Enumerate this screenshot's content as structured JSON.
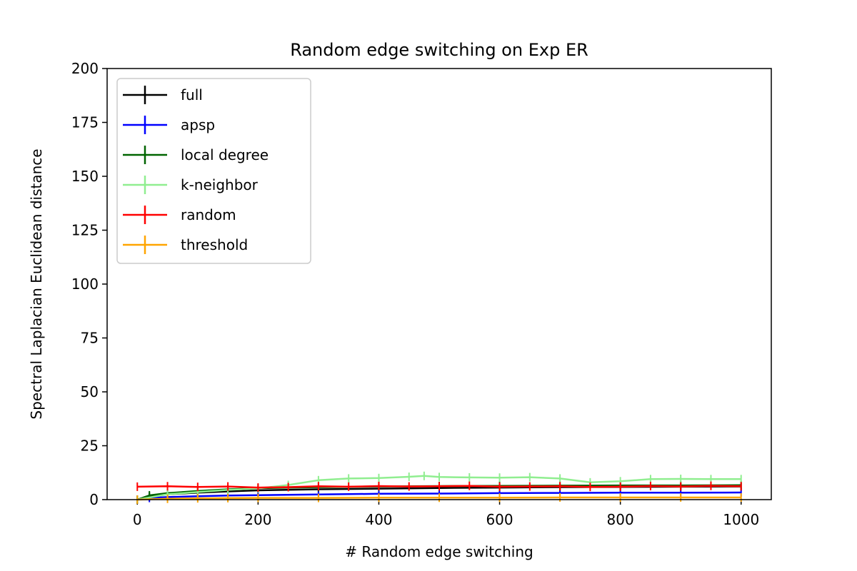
{
  "chart_data": {
    "type": "line",
    "title": "Random edge switching on Exp ER",
    "xlabel": "# Random edge switching",
    "ylabel": "Spectral Laplacian Euclidean distance",
    "xlim": [
      -50,
      1050
    ],
    "ylim": [
      0,
      200
    ],
    "xticks": [
      0,
      200,
      400,
      600,
      800,
      1000
    ],
    "yticks": [
      0,
      25,
      50,
      75,
      100,
      125,
      150,
      175,
      200
    ],
    "grid": false,
    "legend_position": "upper-left",
    "series": [
      {
        "name": "full",
        "color": "#000000",
        "x": [
          0,
          20,
          50,
          100,
          150,
          200,
          300,
          400,
          500,
          600,
          700,
          800,
          900,
          1000
        ],
        "y": [
          0,
          1.5,
          2.5,
          3.2,
          3.8,
          4.3,
          4.8,
          5.1,
          5.4,
          5.6,
          5.8,
          5.9,
          6.0,
          6.1
        ]
      },
      {
        "name": "apsp",
        "color": "#0000ff",
        "x": [
          0,
          20,
          50,
          100,
          150,
          200,
          300,
          400,
          500,
          600,
          700,
          800,
          900,
          1000
        ],
        "y": [
          0,
          0.8,
          1.2,
          1.6,
          1.9,
          2.1,
          2.4,
          2.7,
          2.8,
          3.0,
          3.1,
          3.2,
          3.2,
          3.3
        ]
      },
      {
        "name": "local degree",
        "color": "#006400",
        "x": [
          0,
          20,
          50,
          100,
          150,
          200,
          300,
          400,
          500,
          600,
          700,
          800,
          900,
          1000
        ],
        "y": [
          0,
          2.0,
          3.0,
          4.0,
          4.8,
          5.3,
          5.8,
          6.1,
          6.3,
          6.4,
          6.5,
          6.6,
          6.6,
          6.7
        ]
      },
      {
        "name": "k-neighbor",
        "color": "#90ee90",
        "x": [
          0,
          50,
          100,
          150,
          200,
          250,
          300,
          350,
          400,
          450,
          475,
          500,
          550,
          600,
          650,
          700,
          750,
          800,
          850,
          900,
          950,
          1000
        ],
        "y": [
          0,
          2.5,
          3.5,
          4.5,
          5.2,
          6.8,
          9.0,
          9.8,
          10.0,
          10.6,
          11.0,
          10.5,
          10.3,
          10.2,
          10.4,
          9.8,
          8.0,
          8.5,
          9.5,
          9.6,
          9.5,
          9.5
        ]
      },
      {
        "name": "random",
        "color": "#ff0000",
        "x": [
          0,
          50,
          100,
          150,
          200,
          250,
          300,
          350,
          400,
          450,
          500,
          550,
          600,
          650,
          700,
          750,
          800,
          850,
          900,
          950,
          1000
        ],
        "y": [
          6.0,
          6.2,
          5.9,
          6.1,
          5.6,
          5.8,
          6.2,
          6.0,
          6.3,
          6.1,
          6.2,
          6.4,
          6.0,
          6.1,
          6.2,
          5.9,
          6.0,
          6.3,
          6.1,
          6.4,
          6.2
        ]
      },
      {
        "name": "threshold",
        "color": "#ffa500",
        "x": [
          0,
          50,
          100,
          150,
          200,
          300,
          400,
          500,
          600,
          700,
          800,
          900,
          1000
        ],
        "y": [
          0,
          0.4,
          0.6,
          0.7,
          0.8,
          0.8,
          0.9,
          0.9,
          0.9,
          1.0,
          1.0,
          1.0,
          1.0
        ]
      }
    ]
  }
}
